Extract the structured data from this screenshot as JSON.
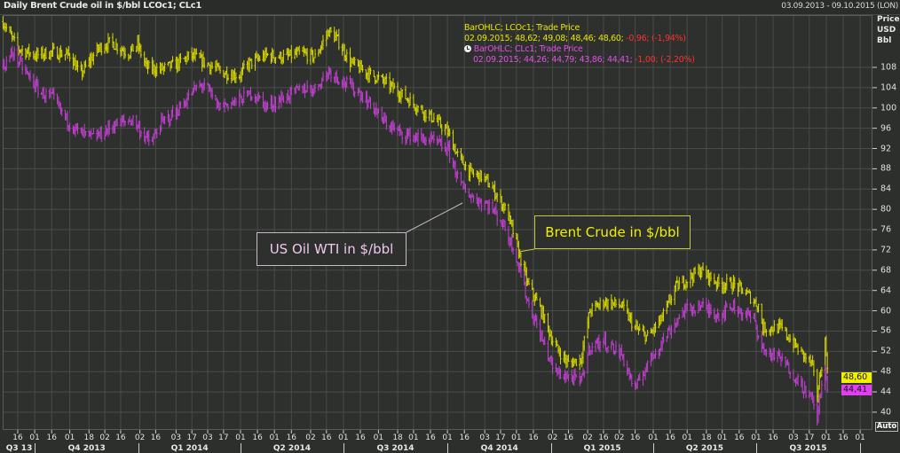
{
  "header": {
    "title": "Daily Brent Crude oil in $/bbl LCOc1; CLc1",
    "date_range": "03.09.2013 - 09.10.2015 (LON)"
  },
  "axis_unit": {
    "line1": "Price",
    "line2": "USD",
    "line3": "Bbl"
  },
  "legend": {
    "brent_title": "BarOHLC; LCOc1; Trade Price",
    "brent_values": "02.09.2015; 48,62; 49,08; 48,46; 48,60;",
    "brent_change": "-0,96; (-1,94%)",
    "wti_title": "BarOHLC; CLc1; Trade Price",
    "wti_values": "02.09.2015; 44,26; 44,79; 43,86; 44,41;",
    "wti_change": "-1,00; (-2,20%)"
  },
  "price_tags": {
    "brent": "48,60",
    "wti": "44,41"
  },
  "auto_button": "Auto",
  "annotations": {
    "wti": "US Oil WTI in $/bbl",
    "brent": "Brent Crude in $/bbl"
  },
  "colors": {
    "brent": "#d8d800",
    "wti": "#c040d0",
    "background": "#2e302d",
    "grid": "#4a4c49"
  },
  "chart_data": {
    "type": "ohlc",
    "title": "Daily Brent Crude oil in $/bbl LCOc1; CLc1",
    "ylabel": "Price USD Bbl",
    "ylim": [
      36,
      118
    ],
    "yticks": [
      40,
      44,
      48,
      52,
      56,
      60,
      64,
      68,
      72,
      76,
      80,
      84,
      88,
      92,
      96,
      100,
      104,
      108
    ],
    "grid": true,
    "last_bar_date": "2015-09-02",
    "xticks": [
      {
        "date": "2013-09-16",
        "label": "16"
      },
      {
        "date": "2013-10-01",
        "label": "01"
      },
      {
        "date": "2013-10-16",
        "label": "16"
      },
      {
        "date": "2013-11-01",
        "label": "01"
      },
      {
        "date": "2013-11-18",
        "label": "18"
      },
      {
        "date": "2013-12-02",
        "label": "02"
      },
      {
        "date": "2013-12-16",
        "label": "16"
      },
      {
        "date": "2014-01-02",
        "label": "02"
      },
      {
        "date": "2014-01-16",
        "label": "16"
      },
      {
        "date": "2014-02-03",
        "label": "03"
      },
      {
        "date": "2014-02-17",
        "label": "17"
      },
      {
        "date": "2014-03-03",
        "label": "03"
      },
      {
        "date": "2014-03-17",
        "label": "17"
      },
      {
        "date": "2014-04-01",
        "label": "01"
      },
      {
        "date": "2014-04-16",
        "label": "16"
      },
      {
        "date": "2014-05-01",
        "label": "01"
      },
      {
        "date": "2014-05-16",
        "label": "16"
      },
      {
        "date": "2014-06-02",
        "label": "02"
      },
      {
        "date": "2014-06-16",
        "label": "16"
      },
      {
        "date": "2014-07-01",
        "label": "01"
      },
      {
        "date": "2014-07-16",
        "label": "16"
      },
      {
        "date": "2014-08-01",
        "label": "01"
      },
      {
        "date": "2014-08-18",
        "label": "18"
      },
      {
        "date": "2014-09-01",
        "label": "01"
      },
      {
        "date": "2014-09-16",
        "label": "16"
      },
      {
        "date": "2014-10-01",
        "label": "01"
      },
      {
        "date": "2014-10-16",
        "label": "16"
      },
      {
        "date": "2014-11-03",
        "label": "03"
      },
      {
        "date": "2014-11-17",
        "label": "17"
      },
      {
        "date": "2014-12-01",
        "label": "01"
      },
      {
        "date": "2014-12-16",
        "label": "16"
      },
      {
        "date": "2015-01-02",
        "label": "02"
      },
      {
        "date": "2015-01-16",
        "label": "16"
      },
      {
        "date": "2015-02-02",
        "label": "02"
      },
      {
        "date": "2015-02-16",
        "label": "16"
      },
      {
        "date": "2015-03-02",
        "label": "02"
      },
      {
        "date": "2015-03-16",
        "label": "16"
      },
      {
        "date": "2015-04-01",
        "label": "01"
      },
      {
        "date": "2015-04-16",
        "label": "16"
      },
      {
        "date": "2015-05-01",
        "label": "01"
      },
      {
        "date": "2015-05-18",
        "label": "18"
      },
      {
        "date": "2015-06-01",
        "label": "01"
      },
      {
        "date": "2015-06-16",
        "label": "16"
      },
      {
        "date": "2015-07-01",
        "label": "01"
      },
      {
        "date": "2015-07-16",
        "label": "16"
      },
      {
        "date": "2015-08-03",
        "label": "03"
      },
      {
        "date": "2015-08-17",
        "label": "17"
      },
      {
        "date": "2015-09-01",
        "label": "01"
      },
      {
        "date": "2015-09-16",
        "label": "16"
      },
      {
        "date": "2015-10-01",
        "label": "01"
      }
    ],
    "quarters": [
      {
        "label": "Q3 13",
        "start": "2013-09-03",
        "end": "2013-10-01"
      },
      {
        "label": "Q4 2013",
        "start": "2013-10-01",
        "end": "2014-01-01"
      },
      {
        "label": "Q1 2014",
        "start": "2014-01-01",
        "end": "2014-04-01"
      },
      {
        "label": "Q2 2014",
        "start": "2014-04-01",
        "end": "2014-07-01"
      },
      {
        "label": "Q3 2014",
        "start": "2014-07-01",
        "end": "2014-10-01"
      },
      {
        "label": "Q4 2014",
        "start": "2014-10-01",
        "end": "2015-01-01"
      },
      {
        "label": "Q1 2015",
        "start": "2015-01-01",
        "end": "2015-04-01"
      },
      {
        "label": "Q2 2015",
        "start": "2015-04-01",
        "end": "2015-07-01"
      },
      {
        "label": "Q3 2015",
        "start": "2015-07-01",
        "end": "2015-10-01"
      }
    ],
    "series": [
      {
        "name": "Brent Crude (LCOc1)",
        "color": "#d8d800",
        "points": [
          [
            "2013-09-03",
            117
          ],
          [
            "2013-09-16",
            111.7
          ],
          [
            "2013-10-02",
            110.4
          ],
          [
            "2013-10-17",
            111
          ],
          [
            "2013-11-02",
            110.4
          ],
          [
            "2013-11-10",
            106.4
          ],
          [
            "2013-11-26",
            111.7
          ],
          [
            "2013-12-07",
            113
          ],
          [
            "2013-12-23",
            110.8
          ],
          [
            "2013-12-31",
            112.5
          ],
          [
            "2014-01-08",
            108
          ],
          [
            "2014-01-20",
            107.6
          ],
          [
            "2014-02-04",
            108.7
          ],
          [
            "2014-02-16",
            110.4
          ],
          [
            "2014-02-28",
            109
          ],
          [
            "2014-03-16",
            107
          ],
          [
            "2014-03-31",
            106.4
          ],
          [
            "2014-04-08",
            108.7
          ],
          [
            "2014-04-24",
            110.4
          ],
          [
            "2014-05-09",
            110
          ],
          [
            "2014-05-25",
            110.8
          ],
          [
            "2014-06-06",
            110
          ],
          [
            "2014-06-18",
            115.2
          ],
          [
            "2014-06-26",
            113.4
          ],
          [
            "2014-07-07",
            109
          ],
          [
            "2014-07-19",
            107.3
          ],
          [
            "2014-08-04",
            105.5
          ],
          [
            "2014-08-20",
            103
          ],
          [
            "2014-09-04",
            100.3
          ],
          [
            "2014-09-20",
            97.7
          ],
          [
            "2014-10-02",
            95
          ],
          [
            "2014-10-10",
            90.7
          ],
          [
            "2014-10-21",
            87.2
          ],
          [
            "2014-11-02",
            86.3
          ],
          [
            "2014-11-14",
            82.8
          ],
          [
            "2014-11-23",
            79.3
          ],
          [
            "2014-11-30",
            74
          ],
          [
            "2014-12-11",
            65.3
          ],
          [
            "2014-12-23",
            60
          ],
          [
            "2015-01-04",
            53
          ],
          [
            "2015-01-16",
            49.6
          ],
          [
            "2015-01-27",
            50.5
          ],
          [
            "2015-02-04",
            60
          ],
          [
            "2015-02-16",
            61.8
          ],
          [
            "2015-03-04",
            61
          ],
          [
            "2015-03-16",
            56.6
          ],
          [
            "2015-03-27",
            54.8
          ],
          [
            "2015-04-08",
            58.3
          ],
          [
            "2015-04-14",
            61
          ],
          [
            "2015-04-20",
            64.5
          ],
          [
            "2015-05-06",
            67
          ],
          [
            "2015-05-13",
            68
          ],
          [
            "2015-05-29",
            65.3
          ],
          [
            "2015-06-10",
            65.3
          ],
          [
            "2015-06-22",
            63.6
          ],
          [
            "2015-07-03",
            61
          ],
          [
            "2015-07-07",
            56.6
          ],
          [
            "2015-07-23",
            56.6
          ],
          [
            "2015-08-08",
            52.2
          ],
          [
            "2015-08-19",
            49.6
          ],
          [
            "2015-08-24",
            43.5
          ],
          [
            "2015-08-27",
            47.9
          ],
          [
            "2015-08-31",
            54
          ],
          [
            "2015-09-02",
            48.6
          ]
        ]
      },
      {
        "name": "US Oil WTI (CLc1)",
        "color": "#c040d0",
        "points": [
          [
            "2013-09-03",
            108
          ],
          [
            "2013-09-12",
            111
          ],
          [
            "2013-09-20",
            108
          ],
          [
            "2013-09-28",
            105.5
          ],
          [
            "2013-10-06",
            103
          ],
          [
            "2013-10-17",
            102
          ],
          [
            "2013-10-29",
            97.7
          ],
          [
            "2013-11-10",
            95
          ],
          [
            "2013-11-22",
            94.2
          ],
          [
            "2013-11-30",
            95
          ],
          [
            "2013-12-11",
            96.8
          ],
          [
            "2013-12-27",
            97.7
          ],
          [
            "2014-01-04",
            95
          ],
          [
            "2014-01-12",
            93
          ],
          [
            "2014-01-20",
            96.8
          ],
          [
            "2014-02-04",
            99.4
          ],
          [
            "2014-02-20",
            103.8
          ],
          [
            "2014-02-28",
            104.7
          ],
          [
            "2014-03-12",
            100.3
          ],
          [
            "2014-03-27",
            101.2
          ],
          [
            "2014-04-12",
            103
          ],
          [
            "2014-04-24",
            100.3
          ],
          [
            "2014-05-09",
            102
          ],
          [
            "2014-05-25",
            103.8
          ],
          [
            "2014-06-06",
            103.8
          ],
          [
            "2014-06-18",
            107.3
          ],
          [
            "2014-06-29",
            105.5
          ],
          [
            "2014-07-15",
            103
          ],
          [
            "2014-07-27",
            100.3
          ],
          [
            "2014-08-04",
            97.7
          ],
          [
            "2014-08-20",
            95
          ],
          [
            "2014-09-04",
            94.2
          ],
          [
            "2014-09-20",
            93.3
          ],
          [
            "2014-10-02",
            91.6
          ],
          [
            "2014-10-13",
            84.6
          ],
          [
            "2014-10-25",
            82
          ],
          [
            "2014-11-06",
            81
          ],
          [
            "2014-11-18",
            77.6
          ],
          [
            "2014-11-30",
            71.5
          ],
          [
            "2014-12-11",
            61.8
          ],
          [
            "2014-12-23",
            54.8
          ],
          [
            "2015-01-04",
            47.9
          ],
          [
            "2015-01-16",
            47
          ],
          [
            "2015-01-27",
            46
          ],
          [
            "2015-02-04",
            53
          ],
          [
            "2015-02-16",
            54
          ],
          [
            "2015-03-04",
            51.4
          ],
          [
            "2015-03-16",
            44.4
          ],
          [
            "2015-03-27",
            49.6
          ],
          [
            "2015-04-14",
            55.7
          ],
          [
            "2015-04-28",
            60
          ],
          [
            "2015-05-13",
            61
          ],
          [
            "2015-05-29",
            59.2
          ],
          [
            "2015-06-10",
            61
          ],
          [
            "2015-06-29",
            58.3
          ],
          [
            "2015-07-07",
            52.2
          ],
          [
            "2015-07-23",
            50.5
          ],
          [
            "2015-08-08",
            46
          ],
          [
            "2015-08-19",
            42.6
          ],
          [
            "2015-08-24",
            39.1
          ],
          [
            "2015-08-31",
            49.6
          ],
          [
            "2015-09-02",
            44.4
          ]
        ]
      }
    ]
  }
}
